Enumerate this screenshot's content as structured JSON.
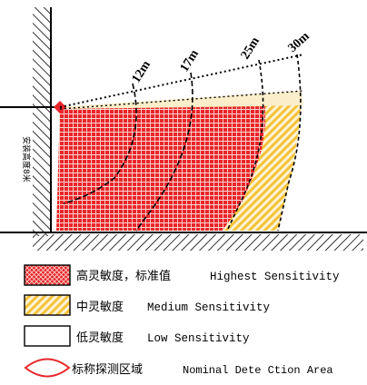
{
  "figure": {
    "range_labels": [
      {
        "id": "12m",
        "text": "12m"
      },
      {
        "id": "17m",
        "text": "17m"
      },
      {
        "id": "25m",
        "text": "25m"
      },
      {
        "id": "30m",
        "text": "30m"
      }
    ],
    "vertical_label": "安装高度8米"
  },
  "legend": [
    {
      "id": "highest",
      "cn": "高灵敏度，标准值",
      "en": "Highest Sensitivity",
      "pattern": "red-crosshatch"
    },
    {
      "id": "medium",
      "cn": "中灵敏度",
      "en": "Medium Sensitivity",
      "pattern": "yellow-diagonal"
    },
    {
      "id": "low",
      "cn": "低灵敏度",
      "en": "Low Sensitivity",
      "pattern": "white"
    },
    {
      "id": "nominal",
      "cn": "标称探测区域",
      "en": "Nominal Dete Ction Area",
      "pattern": "red-outline"
    }
  ],
  "colors": {
    "red": "#e8262b",
    "yellow": "#f5c23a",
    "cream": "#fbeecb",
    "line": "#000000"
  }
}
